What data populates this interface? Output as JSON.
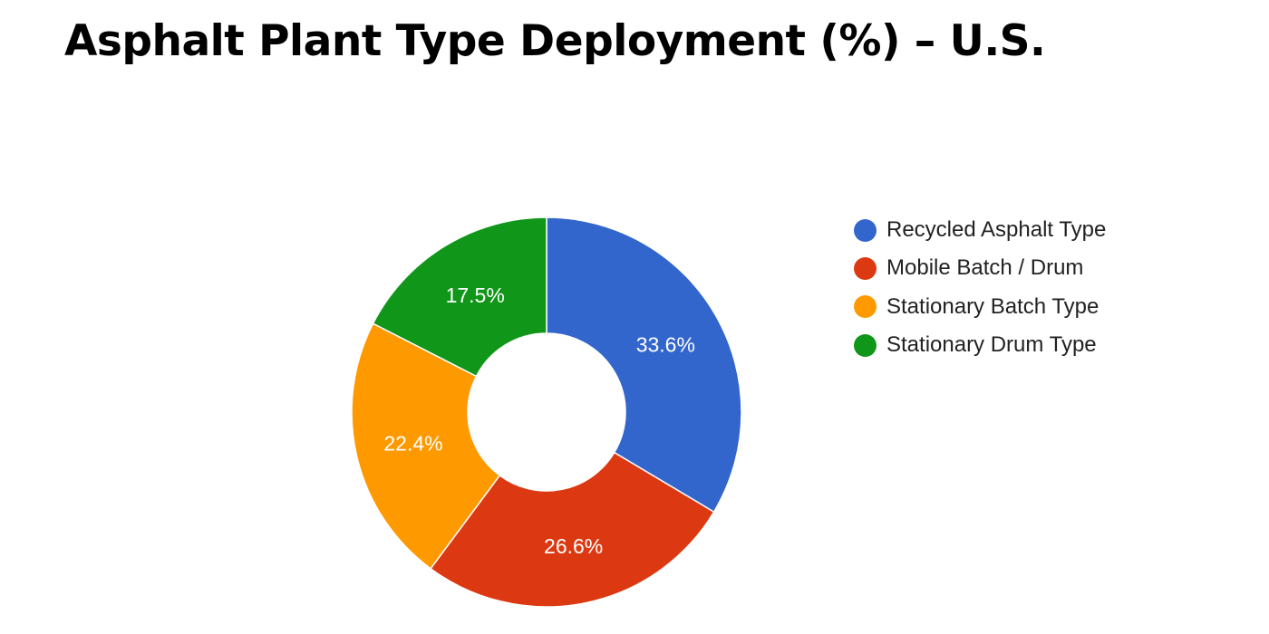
{
  "title": "Asphalt Plant Type Deployment (%) – U.S.",
  "legend": [
    {
      "label": "Recycled Asphalt Type",
      "color": "#3366cc"
    },
    {
      "label": "Mobile Batch / Drum",
      "color": "#dc3912"
    },
    {
      "label": "Stationary Batch Type",
      "color": "#ff9900"
    },
    {
      "label": "Stationary Drum Type",
      "color": "#109618"
    }
  ],
  "chart_data": {
    "type": "pie",
    "variant": "donut",
    "title": "Asphalt Plant Type Deployment (%) – U.S.",
    "categories": [
      "Recycled Asphalt Type",
      "Mobile Batch / Drum",
      "Stationary Batch Type",
      "Stationary Drum Type"
    ],
    "values": [
      33.6,
      26.6,
      22.4,
      17.5
    ],
    "labels": [
      "33.6%",
      "26.6%",
      "22.4%",
      "17.5%"
    ],
    "colors": [
      "#3366cc",
      "#dc3912",
      "#ff9900",
      "#109618"
    ],
    "legend_position": "right",
    "start_angle": "12 o'clock",
    "direction": "clockwise"
  }
}
